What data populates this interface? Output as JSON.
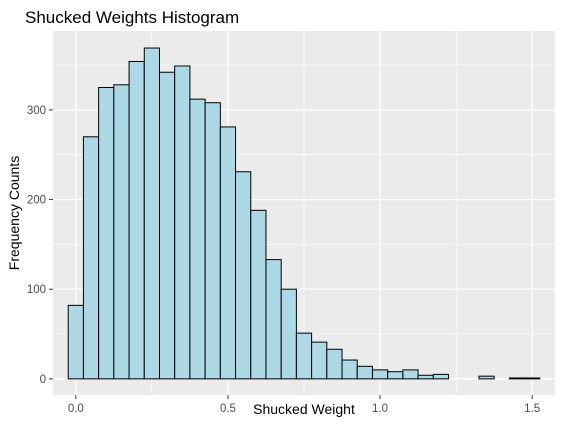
{
  "chart_data": {
    "type": "bar",
    "title": "Shucked Weights Histogram",
    "xlabel": "Shucked Weight",
    "ylabel": "Frequency Counts",
    "bin_width": 0.05,
    "bin_centers": [
      0.0,
      0.05,
      0.1,
      0.15,
      0.2,
      0.25,
      0.3,
      0.35,
      0.4,
      0.45,
      0.5,
      0.55,
      0.6,
      0.65,
      0.7,
      0.75,
      0.8,
      0.85,
      0.9,
      0.95,
      1.0,
      1.05,
      1.1,
      1.15,
      1.2,
      1.25,
      1.3,
      1.35,
      1.4,
      1.45,
      1.5
    ],
    "values": [
      82,
      270,
      325,
      328,
      354,
      369,
      342,
      349,
      312,
      308,
      281,
      231,
      188,
      133,
      100,
      51,
      41,
      33,
      21,
      14,
      10,
      8,
      10,
      4,
      5,
      0,
      0,
      3,
      0,
      1,
      1
    ],
    "xlim": [
      -0.075,
      1.575
    ],
    "ylim": [
      -18,
      388
    ],
    "x_ticks": [
      0.0,
      0.5,
      1.0,
      1.5
    ],
    "x_tick_labels": [
      "0.0",
      "0.5",
      "1.0",
      "1.5"
    ],
    "y_ticks": [
      0,
      100,
      200,
      300
    ],
    "y_tick_labels": [
      "0",
      "100",
      "200",
      "300"
    ],
    "grid": true,
    "colors": {
      "bar_fill": "#add8e6",
      "bar_stroke": "#000000",
      "panel_background": "#ebebeb",
      "grid": "#ffffff"
    }
  }
}
